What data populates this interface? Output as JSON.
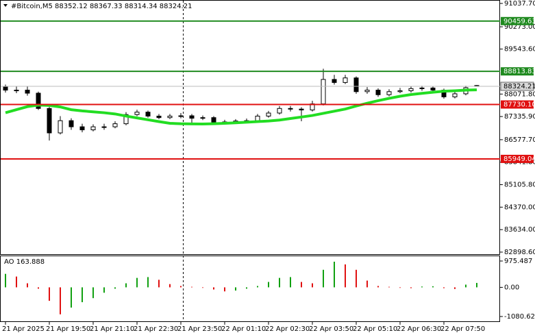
{
  "chart_data": [
    {
      "type": "candlestick",
      "title": "#Bitcoin,M5",
      "open": [
        88300,
        88200,
        88200,
        88100,
        87600,
        86800,
        87200,
        87000,
        86900,
        87000,
        87000,
        87100,
        87400,
        87480,
        87350,
        87300,
        87350,
        87360,
        87280,
        87300,
        87150,
        87160,
        87190,
        87200,
        87350,
        87450,
        87600,
        87580,
        87550,
        87750,
        88550,
        88450,
        88600,
        88150,
        88200,
        88050,
        88150,
        88180,
        88250,
        88270,
        88200,
        87980,
        88080,
        88352.12
      ],
      "high": [
        88380,
        88330,
        88320,
        88150,
        87650,
        87350,
        87280,
        87100,
        87080,
        87100,
        87180,
        87480,
        87560,
        87530,
        87420,
        87420,
        87450,
        87420,
        87370,
        87350,
        87230,
        87250,
        87270,
        87420,
        87520,
        87680,
        87680,
        87640,
        87850,
        88900,
        88700,
        88700,
        88650,
        88300,
        88260,
        88230,
        88270,
        88330,
        88340,
        88320,
        88250,
        88150,
        88340,
        88367.33
      ],
      "low": [
        88120,
        88100,
        88020,
        87550,
        86550,
        86750,
        86900,
        86820,
        86850,
        86900,
        86950,
        87050,
        87350,
        87300,
        87250,
        87250,
        87280,
        87120,
        87220,
        87100,
        87100,
        87120,
        87140,
        87150,
        87300,
        87400,
        87500,
        87180,
        87500,
        87700,
        88380,
        88400,
        88080,
        88080,
        87980,
        88000,
        88100,
        88120,
        88180,
        88130,
        87920,
        87930,
        88030,
        88314.34
      ],
      "close": [
        88200,
        88200,
        88100,
        87600,
        86800,
        87200,
        87000,
        86900,
        87000,
        87000,
        87100,
        87400,
        87480,
        87350,
        87300,
        87350,
        87360,
        87280,
        87300,
        87150,
        87160,
        87190,
        87200,
        87350,
        87450,
        87600,
        87580,
        87550,
        87750,
        88550,
        88450,
        88600,
        88150,
        88200,
        88050,
        88150,
        88180,
        88250,
        88270,
        88200,
        87980,
        88080,
        88280,
        88324.21
      ],
      "up_color": "#ffffff",
      "down_color": "#000000",
      "wick_color": "#000000",
      "ma": {
        "color": "#22dd22",
        "values": [
          87460,
          87560,
          87660,
          87710,
          87700,
          87650,
          87560,
          87520,
          87490,
          87460,
          87420,
          87350,
          87290,
          87230,
          87170,
          87115,
          87100,
          87095,
          87090,
          87100,
          87115,
          87130,
          87150,
          87170,
          87190,
          87220,
          87270,
          87320,
          87370,
          87440,
          87510,
          87580,
          87680,
          87770,
          87855,
          87930,
          88000,
          88055,
          88095,
          88130,
          88165,
          88180,
          88200,
          88210
        ]
      },
      "levels": {
        "values": [
          90459.63,
          88813.83,
          87730.1,
          85949.04
        ],
        "value_labels": [
          "90459.63",
          "88813.83",
          "87730.10",
          "85949.04"
        ],
        "colors": [
          "#1f8a1f",
          "#1f8a1f",
          "#e01010",
          "#e01010"
        ]
      },
      "ylim": [
        82831,
        91105
      ],
      "yticks": [
        {
          "value": 91037.7,
          "label": "91037.70"
        },
        {
          "value": 90273.0,
          "label": "90273.00"
        },
        {
          "value": 89543.6,
          "label": "89543.60"
        },
        {
          "value": 88071.8,
          "label": "88071.80"
        },
        {
          "value": 87335.9,
          "label": "87335.90"
        },
        {
          "value": 86577.7,
          "label": "86577.70"
        },
        {
          "value": 85841.8,
          "label": "85841.80"
        },
        {
          "value": 85105.8,
          "label": "85105.80"
        },
        {
          "value": 84370.0,
          "label": "84370.00"
        },
        {
          "value": 83634.0,
          "label": "83634.00"
        },
        {
          "value": 82898.6,
          "label": "82898.60"
        }
      ],
      "time_labels": [
        "21 Apr 2025",
        "21 Apr 19:50",
        "21 Apr 21:10",
        "21 Apr 22:30",
        "21 Apr 23:50",
        "22 Apr 01:10",
        "22 Apr 02:30",
        "22 Apr 03:50",
        "22 Apr 05:10",
        "22 Apr 06:30",
        "22 Apr 07:50"
      ]
    },
    {
      "type": "bar",
      "title": "AO",
      "values": [
        500,
        400,
        150,
        -50,
        -500,
        -1000,
        -750,
        -550,
        -400,
        -200,
        -50,
        150,
        350,
        380,
        280,
        120,
        50,
        20,
        -20,
        -80,
        -150,
        -120,
        -50,
        50,
        200,
        350,
        380,
        200,
        150,
        650,
        950,
        850,
        650,
        250,
        50,
        20,
        -20,
        -30,
        30,
        40,
        -30,
        -60,
        100,
        163.888
      ],
      "up_color": "#10a010",
      "down_color": "#e01010",
      "ylim": [
        -1233,
        1153
      ],
      "yticks": [
        975.487,
        {
          "value": 0,
          "label": "0.00"
        },
        -1080.621
      ]
    }
  ]
}
